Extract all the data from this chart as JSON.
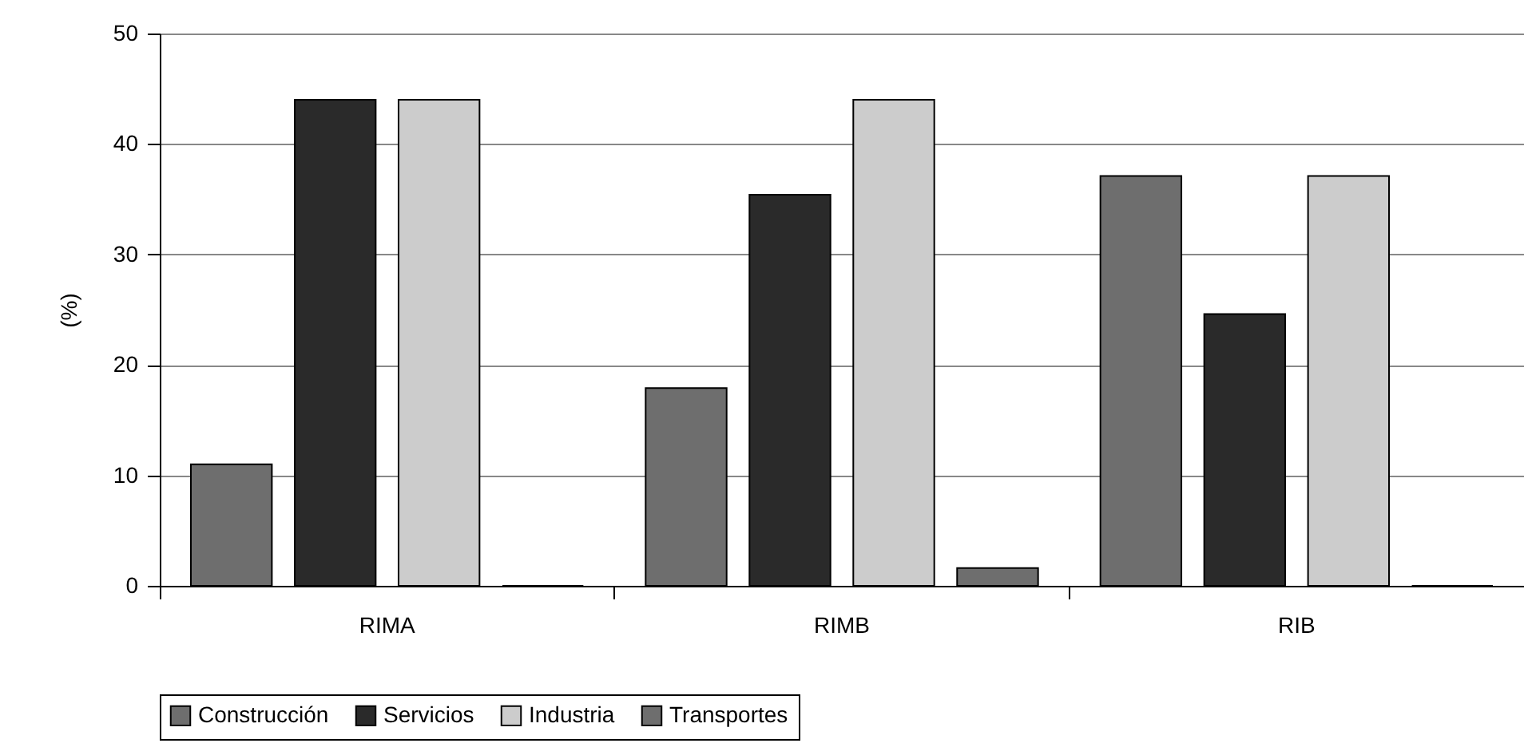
{
  "chart_data": {
    "type": "bar",
    "ylabel": "(%)",
    "categories": [
      "RIMA",
      "RIMB",
      "RIB"
    ],
    "series": [
      {
        "name": "Construcción",
        "color": "#6e6e6e",
        "values": [
          11,
          17.9,
          37.1
        ]
      },
      {
        "name": "Servicios",
        "color": "#2a2a2a",
        "values": [
          44,
          35.4,
          24.6
        ]
      },
      {
        "name": "Industria",
        "color": "#cccccc",
        "values": [
          44,
          44,
          37.1
        ]
      },
      {
        "name": "Transportes",
        "color": "#6e6e6e",
        "values": [
          0,
          1.6,
          0
        ]
      }
    ],
    "ylim": [
      0,
      50
    ],
    "yticks": [
      0,
      10,
      20,
      30,
      40,
      50
    ],
    "grid": "y",
    "legend": "bottom"
  }
}
